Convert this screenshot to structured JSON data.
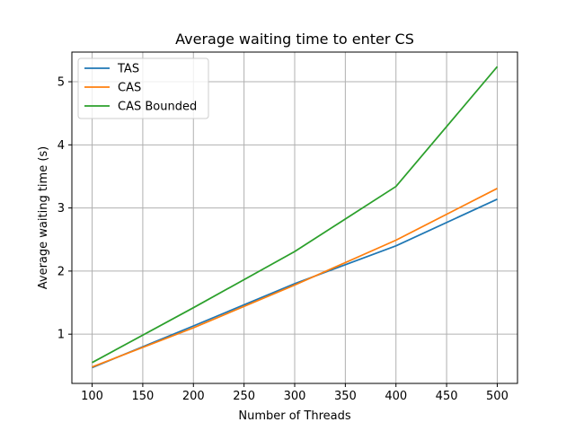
{
  "chart_data": {
    "type": "line",
    "title": "Average waiting time to enter CS",
    "xlabel": "Number of Threads",
    "ylabel": "Average waiting time (s)",
    "x": [
      100,
      200,
      300,
      400,
      500
    ],
    "xlim": [
      80,
      520
    ],
    "ylim": [
      0.22,
      5.47
    ],
    "xticks": [
      100,
      150,
      200,
      250,
      300,
      350,
      400,
      450,
      500
    ],
    "yticks": [
      1,
      2,
      3,
      4,
      5
    ],
    "grid": true,
    "legend_position": "top-left",
    "series": [
      {
        "name": "TAS",
        "color": "#1f77b4",
        "values": [
          0.47,
          1.13,
          1.8,
          2.4,
          3.14
        ]
      },
      {
        "name": "CAS",
        "color": "#ff7f0e",
        "values": [
          0.48,
          1.1,
          1.78,
          2.49,
          3.31
        ]
      },
      {
        "name": "CAS Bounded",
        "color": "#2ca02c",
        "values": [
          0.55,
          1.42,
          2.31,
          3.34,
          5.24
        ]
      }
    ]
  }
}
